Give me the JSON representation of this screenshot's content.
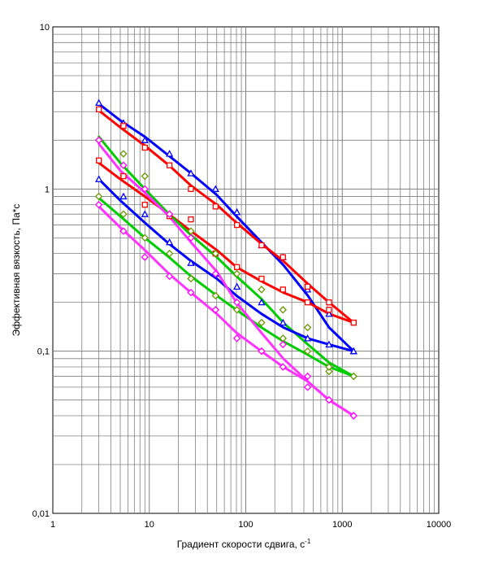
{
  "chart_data": {
    "type": "scatter",
    "title": "",
    "xlabel": "Градиент скорости сдвига, с",
    "xlabel_sup": "-1",
    "ylabel": "Эффективная вязкость, Па*с",
    "x_scale": "log",
    "y_scale": "log",
    "xlim": [
      1,
      10000
    ],
    "ylim": [
      0.01,
      10
    ],
    "x_tick_labels": [
      "1",
      "10",
      "100",
      "1000",
      "10000"
    ],
    "y_tick_labels": [
      "0,01",
      "0,1",
      "1",
      "10"
    ],
    "grid": true,
    "legend": "none",
    "series": [
      {
        "color": "#0000ff",
        "marker": "triangle",
        "x": [
          3,
          5.4,
          9,
          16.2,
          27,
          48.6,
          81,
          145.8,
          243,
          437.4,
          729,
          1312
        ],
        "y": [
          3.4,
          2.55,
          2.0,
          1.65,
          1.25,
          1.0,
          0.72,
          0.45,
          0.38,
          0.24,
          0.17,
          0.1
        ],
        "line_x": [
          3,
          5,
          9,
          16,
          27,
          50,
          80,
          145,
          245,
          440,
          730,
          1312
        ],
        "line_y": [
          3.35,
          2.65,
          2.1,
          1.6,
          1.25,
          0.92,
          0.68,
          0.47,
          0.34,
          0.22,
          0.14,
          0.1
        ]
      },
      {
        "color": "#ff0000",
        "marker": "square",
        "x": [
          3,
          5.4,
          9,
          16.2,
          27,
          48.6,
          81,
          145.8,
          243,
          437.4,
          729,
          1312
        ],
        "y": [
          3.1,
          2.45,
          1.8,
          1.4,
          1.0,
          0.78,
          0.6,
          0.45,
          0.38,
          0.25,
          0.2,
          0.15
        ],
        "line_x": [
          3,
          5,
          9,
          16,
          27,
          50,
          80,
          145,
          245,
          440,
          730,
          1312
        ],
        "line_y": [
          3.05,
          2.4,
          1.85,
          1.4,
          1.05,
          0.8,
          0.62,
          0.46,
          0.36,
          0.26,
          0.2,
          0.15
        ]
      },
      {
        "color": "#ff0000",
        "marker": "square",
        "x": [
          3,
          5.4,
          9,
          16.2,
          27,
          48.6,
          81,
          145.8,
          243,
          437.4,
          729,
          1312
        ],
        "y": [
          1.5,
          1.2,
          0.8,
          0.68,
          0.65,
          0.4,
          0.33,
          0.28,
          0.24,
          0.2,
          0.18,
          0.15
        ],
        "line_x": [
          3,
          5,
          9,
          16,
          27,
          50,
          80,
          145,
          245,
          440,
          730,
          1312
        ],
        "line_y": [
          1.45,
          1.15,
          0.9,
          0.7,
          0.55,
          0.42,
          0.33,
          0.27,
          0.23,
          0.2,
          0.17,
          0.15
        ]
      },
      {
        "color": "#00cc00",
        "marker": "diamond",
        "x": [
          3,
          5.4,
          9,
          16.2,
          27,
          48.6,
          81,
          145.8,
          243,
          437.4,
          729,
          1312
        ],
        "y": [
          2.0,
          1.65,
          1.2,
          0.7,
          0.55,
          0.4,
          0.3,
          0.24,
          0.18,
          0.14,
          0.075,
          0.07
        ],
        "line_x": [
          3,
          5,
          9,
          16,
          27,
          50,
          80,
          145,
          245,
          440,
          730,
          1312
        ],
        "line_y": [
          2.1,
          1.45,
          1.0,
          0.7,
          0.52,
          0.38,
          0.29,
          0.21,
          0.15,
          0.11,
          0.085,
          0.07
        ]
      },
      {
        "color": "#0000ff",
        "marker": "triangle",
        "x": [
          3,
          5.4,
          9,
          16.2,
          27,
          48.6,
          81,
          145.8,
          243,
          437.4,
          729,
          1312
        ],
        "y": [
          1.15,
          0.9,
          0.7,
          0.47,
          0.35,
          0.3,
          0.25,
          0.2,
          0.15,
          0.12,
          0.11,
          0.1
        ],
        "line_x": [
          3,
          5,
          9,
          16,
          27,
          50,
          80,
          145,
          245,
          440,
          730,
          1312
        ],
        "line_y": [
          1.15,
          0.85,
          0.62,
          0.46,
          0.36,
          0.28,
          0.22,
          0.17,
          0.14,
          0.12,
          0.11,
          0.1
        ]
      },
      {
        "color": "#00cc00",
        "marker": "diamond",
        "x": [
          3,
          5.4,
          9,
          16.2,
          27,
          48.6,
          81,
          145.8,
          243,
          437.4,
          729,
          1312
        ],
        "y": [
          0.9,
          0.7,
          0.5,
          0.4,
          0.28,
          0.22,
          0.18,
          0.15,
          0.12,
          0.1,
          0.08,
          0.07
        ],
        "line_x": [
          3,
          5,
          9,
          16,
          27,
          50,
          80,
          145,
          245,
          440,
          730,
          1312
        ],
        "line_y": [
          0.88,
          0.68,
          0.5,
          0.38,
          0.29,
          0.22,
          0.18,
          0.14,
          0.115,
          0.095,
          0.08,
          0.07
        ]
      },
      {
        "color": "#ff33ff",
        "marker": "diamond",
        "x": [
          3,
          5.4,
          9,
          16.2,
          27,
          48.6,
          81,
          145.8,
          243,
          437.4,
          729,
          1312
        ],
        "y": [
          2.0,
          1.4,
          1.0,
          0.7,
          0.5,
          0.3,
          0.2,
          0.1,
          0.11,
          0.07,
          0.05,
          0.04
        ],
        "line_x": [
          3,
          5,
          9,
          16,
          27,
          50,
          80,
          145,
          245,
          440,
          730,
          1312
        ],
        "line_y": [
          1.9,
          1.3,
          0.95,
          0.68,
          0.47,
          0.31,
          0.2,
          0.13,
          0.09,
          0.065,
          0.05,
          0.04
        ]
      },
      {
        "color": "#ff33ff",
        "marker": "diamond",
        "x": [
          3,
          5.4,
          9,
          16.2,
          27,
          48.6,
          81,
          145.8,
          243,
          437.4,
          729,
          1312
        ],
        "y": [
          0.8,
          0.55,
          0.38,
          0.29,
          0.23,
          0.18,
          0.12,
          0.1,
          0.08,
          0.06,
          0.05,
          0.04
        ],
        "line_x": [
          3,
          5,
          9,
          16,
          27,
          50,
          80,
          145,
          245,
          440,
          730,
          1312
        ],
        "line_y": [
          0.78,
          0.58,
          0.42,
          0.3,
          0.23,
          0.17,
          0.13,
          0.1,
          0.08,
          0.065,
          0.05,
          0.04
        ]
      }
    ]
  }
}
